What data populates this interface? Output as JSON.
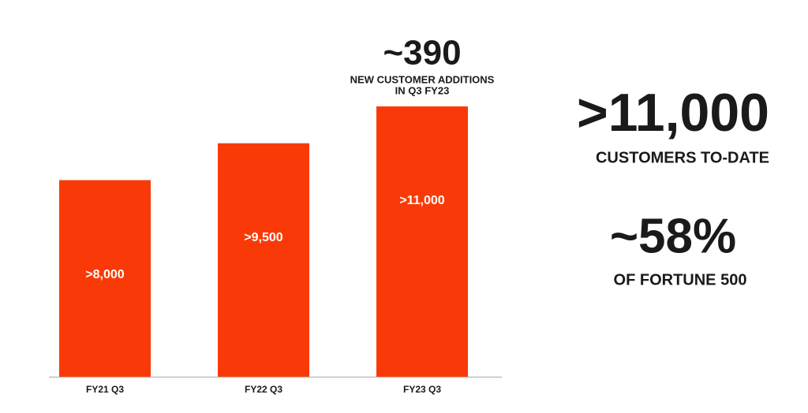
{
  "chart_data": {
    "type": "bar",
    "categories": [
      "FY21 Q3",
      "FY22 Q3",
      "FY23 Q3"
    ],
    "values": [
      8000,
      9500,
      11000
    ],
    "value_labels": [
      ">8,000",
      ">9,500",
      ">11,000"
    ],
    "color": "#f93a08",
    "bar_annotation": {
      "headline": "~390",
      "lines": [
        "NEW CUSTOMER ADDITIONS",
        "IN Q3 FY23"
      ]
    },
    "stats": [
      {
        "headline": ">11,000",
        "caption": "CUSTOMERS TO-DATE"
      },
      {
        "headline": "~58%",
        "caption": "OF FORTUNE 500"
      }
    ]
  }
}
